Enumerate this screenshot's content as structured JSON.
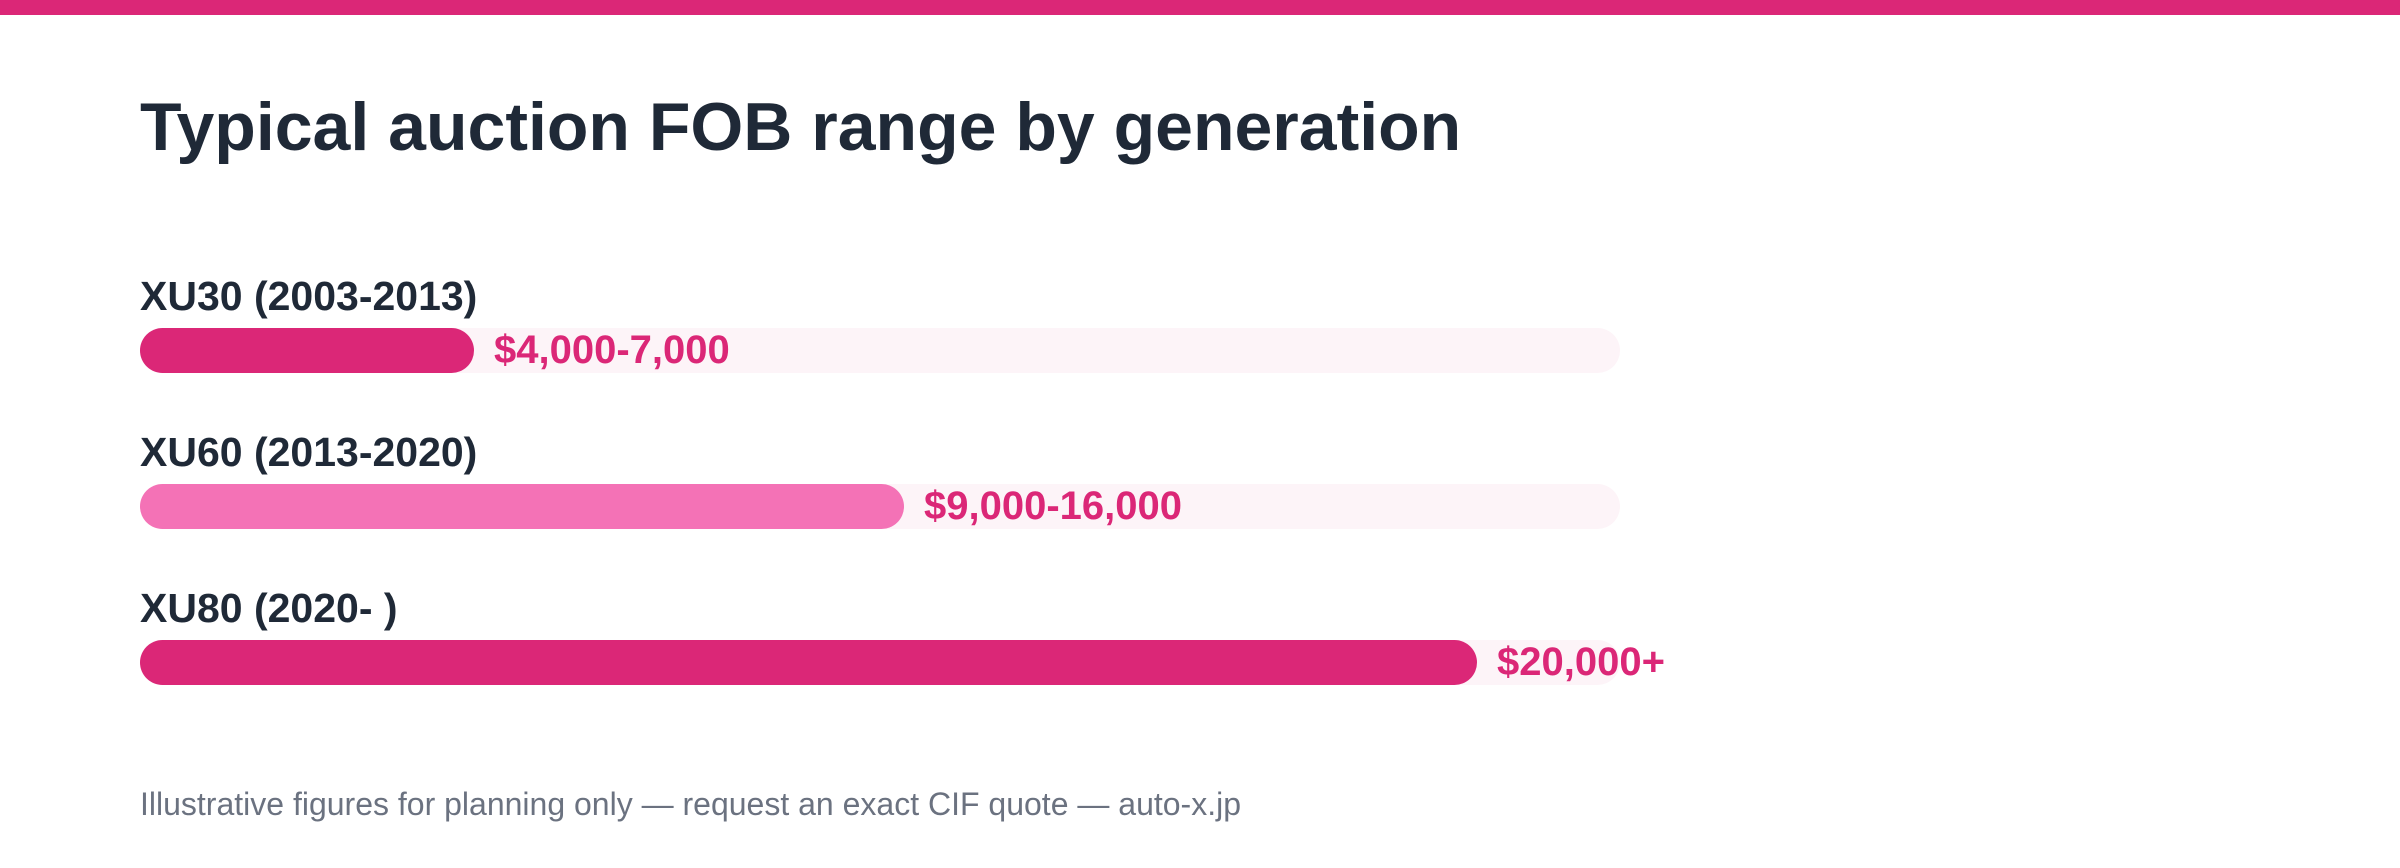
{
  "theme": {
    "accent": "#db2777",
    "accent_light": "#f472b6",
    "track": "#fdf4f8",
    "text": "#1f2937",
    "muted": "#6b7280"
  },
  "chart_data": {
    "type": "bar",
    "orientation": "horizontal",
    "title": "Typical auction FOB range by generation",
    "categories": [
      "XU30 (2003-2013)",
      "XU60 (2013-2020)",
      "XU80 (2020- )"
    ],
    "values": [
      7000,
      16000,
      28000
    ],
    "value_labels": [
      "$4,000-7,000",
      "$9,000-16,000",
      "$20,000+"
    ],
    "bar_colors": [
      "#db2777",
      "#f472b6",
      "#db2777"
    ],
    "xlim": [
      0,
      31000
    ],
    "grid": false,
    "legend": "none"
  },
  "footnote": "Illustrative figures for planning only — request an exact CIF quote — auto-x.jp"
}
